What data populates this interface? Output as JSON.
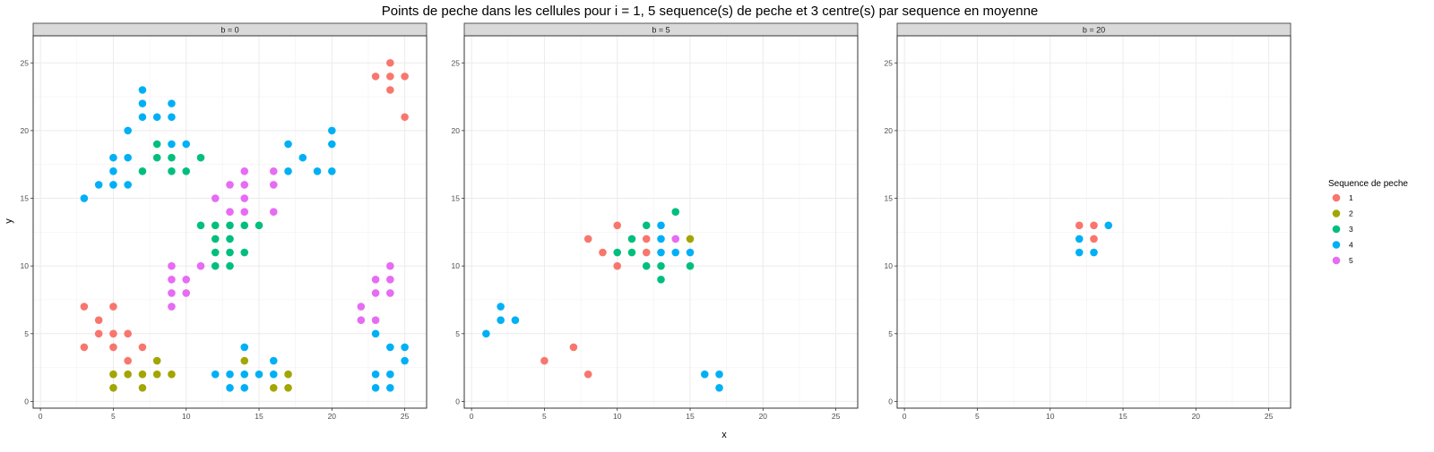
{
  "chart_data": {
    "type": "scatter",
    "title": "Points de peche dans les cellules pour i = 1, 5 sequence(s) de peche et 3 centre(s) par sequence en moyenne",
    "xlabel": "x",
    "ylabel": "y",
    "xlim": [
      -0.5,
      26.5
    ],
    "ylim": [
      -0.5,
      27.0
    ],
    "x_ticks": [
      0,
      5,
      10,
      15,
      20,
      25
    ],
    "y_ticks": [
      0,
      5,
      10,
      15,
      20,
      25
    ],
    "grid": true,
    "legend": {
      "title": "Sequence de peche",
      "placement": "right",
      "entries": [
        {
          "label": "1",
          "color": "#F8766D"
        },
        {
          "label": "2",
          "color": "#A3A500"
        },
        {
          "label": "3",
          "color": "#00BF7D"
        },
        {
          "label": "4",
          "color": "#00B0F6"
        },
        {
          "label": "5",
          "color": "#E76BF3"
        }
      ]
    },
    "panels": [
      {
        "strip": "b = 0",
        "points": [
          {
            "x": 24,
            "y": 25,
            "s": "1"
          },
          {
            "x": 23,
            "y": 24,
            "s": "1"
          },
          {
            "x": 24,
            "y": 24,
            "s": "1"
          },
          {
            "x": 25,
            "y": 24,
            "s": "1"
          },
          {
            "x": 24,
            "y": 23,
            "s": "1"
          },
          {
            "x": 25,
            "y": 21,
            "s": "1"
          },
          {
            "x": 3,
            "y": 7,
            "s": "1"
          },
          {
            "x": 5,
            "y": 7,
            "s": "1"
          },
          {
            "x": 4,
            "y": 6,
            "s": "1"
          },
          {
            "x": 4,
            "y": 5,
            "s": "1"
          },
          {
            "x": 5,
            "y": 5,
            "s": "1"
          },
          {
            "x": 6,
            "y": 5,
            "s": "1"
          },
          {
            "x": 3,
            "y": 4,
            "s": "1"
          },
          {
            "x": 5,
            "y": 4,
            "s": "1"
          },
          {
            "x": 7,
            "y": 4,
            "s": "1"
          },
          {
            "x": 6,
            "y": 3,
            "s": "1"
          },
          {
            "x": 8,
            "y": 3,
            "s": "2"
          },
          {
            "x": 14,
            "y": 3,
            "s": "2"
          },
          {
            "x": 5,
            "y": 2,
            "s": "2"
          },
          {
            "x": 6,
            "y": 2,
            "s": "2"
          },
          {
            "x": 7,
            "y": 2,
            "s": "2"
          },
          {
            "x": 8,
            "y": 2,
            "s": "2"
          },
          {
            "x": 9,
            "y": 2,
            "s": "2"
          },
          {
            "x": 17,
            "y": 2,
            "s": "2"
          },
          {
            "x": 5,
            "y": 1,
            "s": "2"
          },
          {
            "x": 7,
            "y": 1,
            "s": "2"
          },
          {
            "x": 16,
            "y": 1,
            "s": "2"
          },
          {
            "x": 17,
            "y": 1,
            "s": "2"
          },
          {
            "x": 8,
            "y": 19,
            "s": "3"
          },
          {
            "x": 8,
            "y": 18,
            "s": "3"
          },
          {
            "x": 9,
            "y": 18,
            "s": "3"
          },
          {
            "x": 11,
            "y": 18,
            "s": "3"
          },
          {
            "x": 7,
            "y": 17,
            "s": "3"
          },
          {
            "x": 9,
            "y": 17,
            "s": "3"
          },
          {
            "x": 10,
            "y": 17,
            "s": "3"
          },
          {
            "x": 11,
            "y": 13,
            "s": "3"
          },
          {
            "x": 12,
            "y": 13,
            "s": "3"
          },
          {
            "x": 13,
            "y": 13,
            "s": "3"
          },
          {
            "x": 14,
            "y": 13,
            "s": "3"
          },
          {
            "x": 15,
            "y": 13,
            "s": "3"
          },
          {
            "x": 12,
            "y": 12,
            "s": "3"
          },
          {
            "x": 13,
            "y": 12,
            "s": "3"
          },
          {
            "x": 12,
            "y": 11,
            "s": "3"
          },
          {
            "x": 13,
            "y": 11,
            "s": "3"
          },
          {
            "x": 14,
            "y": 11,
            "s": "3"
          },
          {
            "x": 12,
            "y": 10,
            "s": "3"
          },
          {
            "x": 13,
            "y": 10,
            "s": "3"
          },
          {
            "x": 7,
            "y": 23,
            "s": "4"
          },
          {
            "x": 7,
            "y": 22,
            "s": "4"
          },
          {
            "x": 9,
            "y": 22,
            "s": "4"
          },
          {
            "x": 7,
            "y": 21,
            "s": "4"
          },
          {
            "x": 8,
            "y": 21,
            "s": "4"
          },
          {
            "x": 9,
            "y": 21,
            "s": "4"
          },
          {
            "x": 6,
            "y": 20,
            "s": "4"
          },
          {
            "x": 20,
            "y": 20,
            "s": "4"
          },
          {
            "x": 9,
            "y": 19,
            "s": "4"
          },
          {
            "x": 10,
            "y": 19,
            "s": "4"
          },
          {
            "x": 17,
            "y": 19,
            "s": "4"
          },
          {
            "x": 20,
            "y": 19,
            "s": "4"
          },
          {
            "x": 5,
            "y": 18,
            "s": "4"
          },
          {
            "x": 6,
            "y": 18,
            "s": "4"
          },
          {
            "x": 18,
            "y": 18,
            "s": "4"
          },
          {
            "x": 5,
            "y": 17,
            "s": "4"
          },
          {
            "x": 17,
            "y": 17,
            "s": "4"
          },
          {
            "x": 19,
            "y": 17,
            "s": "4"
          },
          {
            "x": 20,
            "y": 17,
            "s": "4"
          },
          {
            "x": 4,
            "y": 16,
            "s": "4"
          },
          {
            "x": 5,
            "y": 16,
            "s": "4"
          },
          {
            "x": 6,
            "y": 16,
            "s": "4"
          },
          {
            "x": 3,
            "y": 15,
            "s": "4"
          },
          {
            "x": 23,
            "y": 5,
            "s": "4"
          },
          {
            "x": 14,
            "y": 4,
            "s": "4"
          },
          {
            "x": 24,
            "y": 4,
            "s": "4"
          },
          {
            "x": 25,
            "y": 4,
            "s": "4"
          },
          {
            "x": 16,
            "y": 3,
            "s": "4"
          },
          {
            "x": 25,
            "y": 3,
            "s": "4"
          },
          {
            "x": 12,
            "y": 2,
            "s": "4"
          },
          {
            "x": 13,
            "y": 2,
            "s": "4"
          },
          {
            "x": 14,
            "y": 2,
            "s": "4"
          },
          {
            "x": 15,
            "y": 2,
            "s": "4"
          },
          {
            "x": 16,
            "y": 2,
            "s": "4"
          },
          {
            "x": 23,
            "y": 2,
            "s": "4"
          },
          {
            "x": 24,
            "y": 2,
            "s": "4"
          },
          {
            "x": 13,
            "y": 1,
            "s": "4"
          },
          {
            "x": 14,
            "y": 1,
            "s": "4"
          },
          {
            "x": 23,
            "y": 1,
            "s": "4"
          },
          {
            "x": 24,
            "y": 1,
            "s": "4"
          },
          {
            "x": 14,
            "y": 17,
            "s": "5"
          },
          {
            "x": 16,
            "y": 17,
            "s": "5"
          },
          {
            "x": 13,
            "y": 16,
            "s": "5"
          },
          {
            "x": 14,
            "y": 16,
            "s": "5"
          },
          {
            "x": 16,
            "y": 16,
            "s": "5"
          },
          {
            "x": 12,
            "y": 15,
            "s": "5"
          },
          {
            "x": 14,
            "y": 15,
            "s": "5"
          },
          {
            "x": 13,
            "y": 14,
            "s": "5"
          },
          {
            "x": 14,
            "y": 14,
            "s": "5"
          },
          {
            "x": 16,
            "y": 14,
            "s": "5"
          },
          {
            "x": 9,
            "y": 10,
            "s": "5"
          },
          {
            "x": 11,
            "y": 10,
            "s": "5"
          },
          {
            "x": 24,
            "y": 10,
            "s": "5"
          },
          {
            "x": 9,
            "y": 9,
            "s": "5"
          },
          {
            "x": 10,
            "y": 9,
            "s": "5"
          },
          {
            "x": 23,
            "y": 9,
            "s": "5"
          },
          {
            "x": 24,
            "y": 9,
            "s": "5"
          },
          {
            "x": 9,
            "y": 8,
            "s": "5"
          },
          {
            "x": 10,
            "y": 8,
            "s": "5"
          },
          {
            "x": 23,
            "y": 8,
            "s": "5"
          },
          {
            "x": 24,
            "y": 8,
            "s": "5"
          },
          {
            "x": 9,
            "y": 7,
            "s": "5"
          },
          {
            "x": 22,
            "y": 7,
            "s": "5"
          },
          {
            "x": 22,
            "y": 6,
            "s": "5"
          },
          {
            "x": 23,
            "y": 6,
            "s": "5"
          }
        ]
      },
      {
        "strip": "b = 5",
        "points": [
          {
            "x": 10,
            "y": 13,
            "s": "1"
          },
          {
            "x": 8,
            "y": 12,
            "s": "1"
          },
          {
            "x": 12,
            "y": 12,
            "s": "1"
          },
          {
            "x": 9,
            "y": 11,
            "s": "1"
          },
          {
            "x": 12,
            "y": 11,
            "s": "1"
          },
          {
            "x": 10,
            "y": 10,
            "s": "1"
          },
          {
            "x": 7,
            "y": 4,
            "s": "1"
          },
          {
            "x": 5,
            "y": 3,
            "s": "1"
          },
          {
            "x": 8,
            "y": 2,
            "s": "1"
          },
          {
            "x": 15,
            "y": 12,
            "s": "2"
          },
          {
            "x": 14,
            "y": 14,
            "s": "3"
          },
          {
            "x": 12,
            "y": 13,
            "s": "3"
          },
          {
            "x": 11,
            "y": 12,
            "s": "3"
          },
          {
            "x": 10,
            "y": 11,
            "s": "3"
          },
          {
            "x": 11,
            "y": 11,
            "s": "3"
          },
          {
            "x": 12,
            "y": 10,
            "s": "3"
          },
          {
            "x": 13,
            "y": 10,
            "s": "3"
          },
          {
            "x": 15,
            "y": 10,
            "s": "3"
          },
          {
            "x": 13,
            "y": 9,
            "s": "3"
          },
          {
            "x": 13,
            "y": 13,
            "s": "4"
          },
          {
            "x": 13,
            "y": 12,
            "s": "4"
          },
          {
            "x": 13,
            "y": 11,
            "s": "4"
          },
          {
            "x": 14,
            "y": 11,
            "s": "4"
          },
          {
            "x": 15,
            "y": 11,
            "s": "4"
          },
          {
            "x": 2,
            "y": 7,
            "s": "4"
          },
          {
            "x": 2,
            "y": 6,
            "s": "4"
          },
          {
            "x": 3,
            "y": 6,
            "s": "4"
          },
          {
            "x": 1,
            "y": 5,
            "s": "4"
          },
          {
            "x": 16,
            "y": 2,
            "s": "4"
          },
          {
            "x": 17,
            "y": 2,
            "s": "4"
          },
          {
            "x": 17,
            "y": 1,
            "s": "4"
          },
          {
            "x": 14,
            "y": 12,
            "s": "5"
          }
        ]
      },
      {
        "strip": "b = 20",
        "points": [
          {
            "x": 12,
            "y": 13,
            "s": "1"
          },
          {
            "x": 13,
            "y": 13,
            "s": "1"
          },
          {
            "x": 13,
            "y": 12,
            "s": "1"
          },
          {
            "x": 14,
            "y": 13,
            "s": "4"
          },
          {
            "x": 12,
            "y": 12,
            "s": "4"
          },
          {
            "x": 12,
            "y": 11,
            "s": "4"
          },
          {
            "x": 13,
            "y": 11,
            "s": "4"
          }
        ]
      }
    ]
  }
}
